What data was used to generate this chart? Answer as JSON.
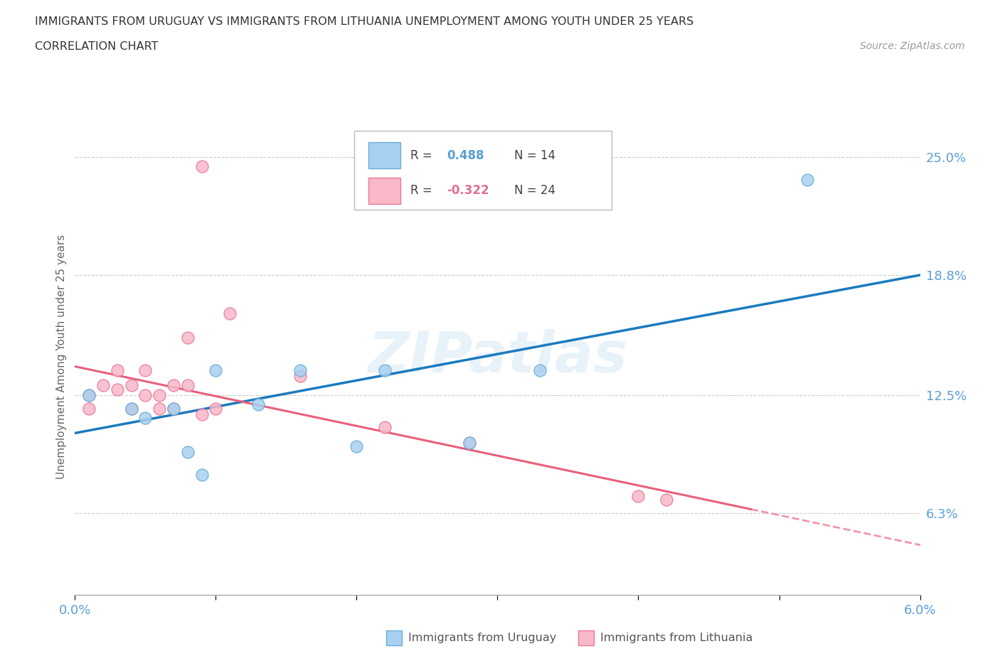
{
  "title_line1": "IMMIGRANTS FROM URUGUAY VS IMMIGRANTS FROM LITHUANIA UNEMPLOYMENT AMONG YOUTH UNDER 25 YEARS",
  "title_line2": "CORRELATION CHART",
  "source_text": "Source: ZipAtlas.com",
  "ylabel": "Unemployment Among Youth under 25 years",
  "xlim": [
    0.0,
    0.06
  ],
  "ylim": [
    0.02,
    0.27
  ],
  "yticks": [
    0.063,
    0.125,
    0.188,
    0.25
  ],
  "ytick_labels": [
    "6.3%",
    "12.5%",
    "18.8%",
    "25.0%"
  ],
  "xticks": [
    0.0,
    0.01,
    0.02,
    0.03,
    0.04,
    0.05,
    0.06
  ],
  "uruguay_color": "#a8d0f0",
  "uruguay_edge_color": "#6aaed6",
  "lithuania_color": "#f9b8c8",
  "lithuania_edge_color": "#e8789a",
  "R_uruguay": 0.488,
  "N_uruguay": 14,
  "R_lithuania": -0.322,
  "N_lithuania": 24,
  "uruguay_x": [
    0.001,
    0.004,
    0.005,
    0.007,
    0.008,
    0.009,
    0.01,
    0.013,
    0.016,
    0.02,
    0.022,
    0.028,
    0.033,
    0.052
  ],
  "uruguay_y": [
    0.125,
    0.118,
    0.113,
    0.118,
    0.095,
    0.083,
    0.138,
    0.12,
    0.138,
    0.098,
    0.138,
    0.1,
    0.138,
    0.238
  ],
  "lithuania_x": [
    0.001,
    0.001,
    0.002,
    0.003,
    0.003,
    0.004,
    0.004,
    0.005,
    0.005,
    0.006,
    0.006,
    0.007,
    0.007,
    0.008,
    0.008,
    0.009,
    0.009,
    0.01,
    0.011,
    0.016,
    0.022,
    0.028,
    0.04,
    0.042
  ],
  "lithuania_y": [
    0.125,
    0.118,
    0.13,
    0.138,
    0.128,
    0.13,
    0.118,
    0.138,
    0.125,
    0.118,
    0.125,
    0.13,
    0.118,
    0.155,
    0.13,
    0.115,
    0.245,
    0.118,
    0.168,
    0.135,
    0.108,
    0.1,
    0.072,
    0.07
  ],
  "line_blue_color": "#1a7abf",
  "line_pink_color": "#e8607a",
  "grid_color": "#dddddd",
  "background_color": "#ffffff",
  "tick_color": "#5a9fd4",
  "label_color": "#666666"
}
